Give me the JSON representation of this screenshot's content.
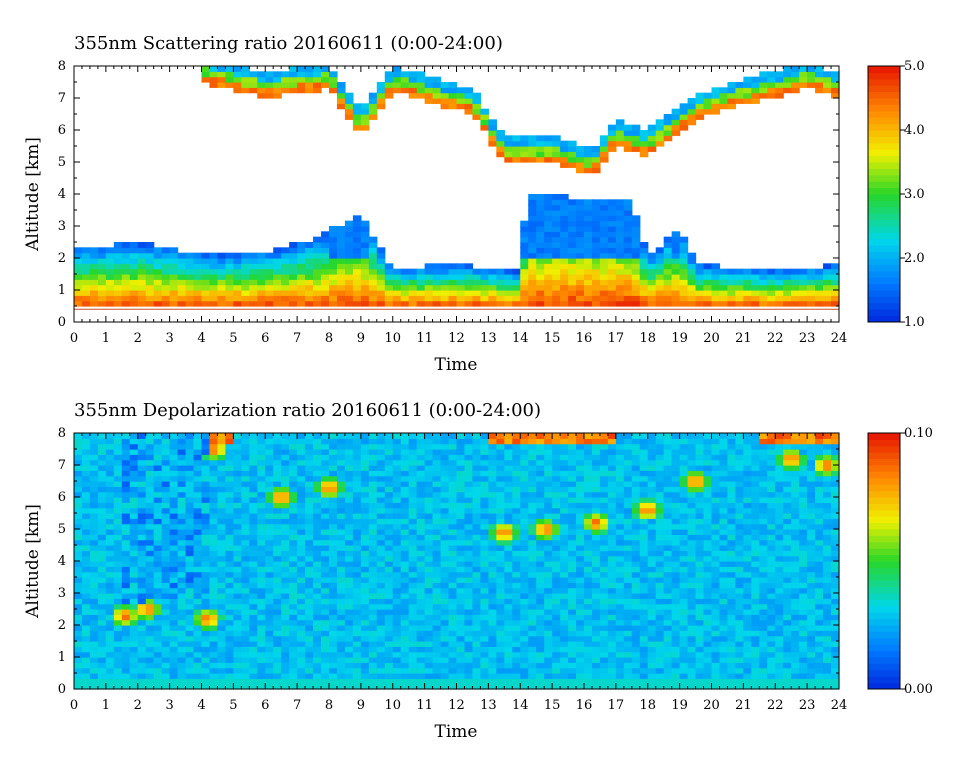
{
  "chart_data": [
    {
      "type": "heatmap",
      "title": "355nm Scattering ratio  20160611 (0:00-24:00)",
      "xlabel": "Time",
      "ylabel": "Altitude [km]",
      "xlim": [
        0,
        24
      ],
      "ylim": [
        0,
        8
      ],
      "x_ticks": [
        "0",
        "1",
        "2",
        "3",
        "4",
        "5",
        "6",
        "7",
        "8",
        "9",
        "10",
        "11",
        "12",
        "13",
        "14",
        "15",
        "16",
        "17",
        "18",
        "19",
        "20",
        "21",
        "22",
        "23",
        "24"
      ],
      "y_ticks": [
        "0",
        "1",
        "2",
        "3",
        "4",
        "5",
        "6",
        "7",
        "8"
      ],
      "colorbar": {
        "range": [
          1.0,
          5.0
        ],
        "tick_labels": [
          "1.0",
          "2.0",
          "3.0",
          "4.0",
          "5.0"
        ]
      },
      "features": {
        "boundary_layer_top_km": [
          {
            "t": 0,
            "h": 2.3
          },
          {
            "t": 2,
            "h": 2.5
          },
          {
            "t": 4,
            "h": 2.1
          },
          {
            "t": 6,
            "h": 2.2
          },
          {
            "t": 7.5,
            "h": 2.6
          },
          {
            "t": 9,
            "h": 3.4
          },
          {
            "t": 9.8,
            "h": 2.0
          },
          {
            "t": 10,
            "h": 1.7
          },
          {
            "t": 12,
            "h": 1.8
          },
          {
            "t": 14,
            "h": 1.6
          },
          {
            "t": 14.2,
            "h": 4.0
          },
          {
            "t": 17.5,
            "h": 3.8
          },
          {
            "t": 18,
            "h": 2.0
          },
          {
            "t": 19,
            "h": 3.0
          },
          {
            "t": 19.5,
            "h": 1.8
          },
          {
            "t": 22,
            "h": 1.6
          },
          {
            "t": 24,
            "h": 1.8
          }
        ],
        "upper_cloud_base_km": [
          {
            "t": 4,
            "h": 7.5
          },
          {
            "t": 6,
            "h": 7.0
          },
          {
            "t": 8,
            "h": 7.3
          },
          {
            "t": 9,
            "h": 5.8
          },
          {
            "t": 10,
            "h": 7.2
          },
          {
            "t": 12.5,
            "h": 6.5
          },
          {
            "t": 13.5,
            "h": 5.0
          },
          {
            "t": 15,
            "h": 5.0
          },
          {
            "t": 16.3,
            "h": 4.6
          },
          {
            "t": 17,
            "h": 5.5
          },
          {
            "t": 18,
            "h": 5.2
          },
          {
            "t": 19.5,
            "h": 6.3
          },
          {
            "t": 21,
            "h": 6.8
          },
          {
            "t": 23,
            "h": 7.3
          },
          {
            "t": 24,
            "h": 7.0
          }
        ]
      }
    },
    {
      "type": "heatmap",
      "title": "355nm Depolarization ratio  20160611 (0:00-24:00)",
      "xlabel": "Time",
      "ylabel": "Altitude [km]",
      "xlim": [
        0,
        24
      ],
      "ylim": [
        0,
        8
      ],
      "x_ticks": [
        "0",
        "1",
        "2",
        "3",
        "4",
        "5",
        "6",
        "7",
        "8",
        "9",
        "10",
        "11",
        "12",
        "13",
        "14",
        "15",
        "16",
        "17",
        "18",
        "19",
        "20",
        "21",
        "22",
        "23",
        "24"
      ],
      "y_ticks": [
        "0",
        "1",
        "2",
        "3",
        "4",
        "5",
        "6",
        "7",
        "8"
      ],
      "colorbar": {
        "range": [
          0.0,
          0.1
        ],
        "tick_labels": [
          "0.00",
          "0.10"
        ]
      },
      "features": {
        "high_depol_patches": [
          {
            "t": 1.6,
            "h": 2.3
          },
          {
            "t": 2.3,
            "h": 2.5
          },
          {
            "t": 4.2,
            "h": 2.2
          },
          {
            "t": 4.4,
            "h": 7.5
          },
          {
            "t": 6.5,
            "h": 6.0
          },
          {
            "t": 8.0,
            "h": 6.3
          },
          {
            "t": 13.5,
            "h": 4.9
          },
          {
            "t": 14.8,
            "h": 5.0
          },
          {
            "t": 16.4,
            "h": 5.2
          },
          {
            "t": 18.0,
            "h": 5.6
          },
          {
            "t": 19.5,
            "h": 6.5
          },
          {
            "t": 22.5,
            "h": 7.2
          },
          {
            "t": 23.6,
            "h": 7.0
          }
        ]
      }
    }
  ]
}
